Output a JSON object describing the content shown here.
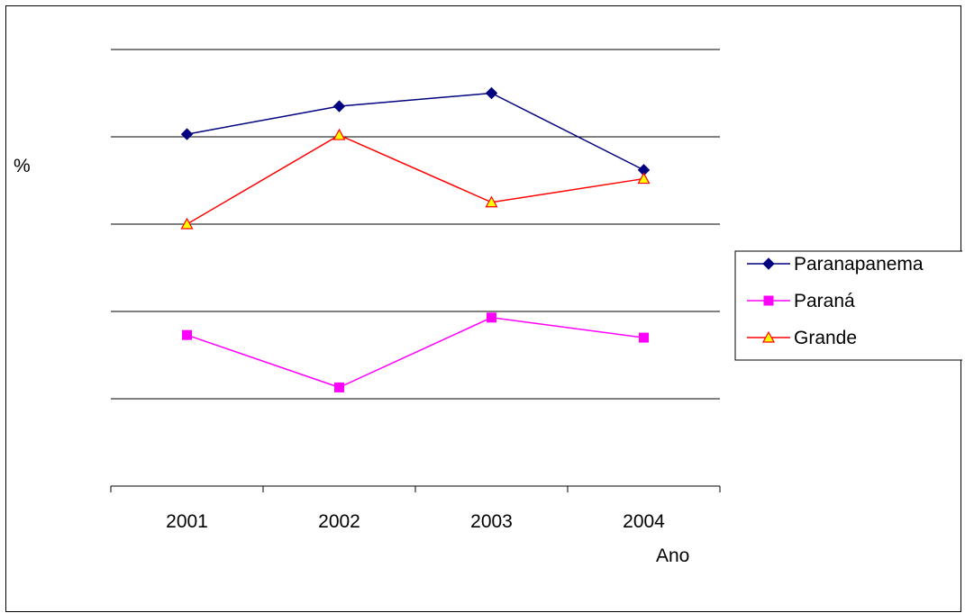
{
  "chart_data": {
    "type": "line",
    "categories": [
      "2001",
      "2002",
      "2003",
      "2004"
    ],
    "xlabel": "Ano",
    "ylabel": "%",
    "ylim": [
      0,
      5
    ],
    "grid": true,
    "legend_position": "right",
    "series": [
      {
        "name": "Paranapanema",
        "values": [
          4.03,
          4.35,
          4.5,
          3.62
        ],
        "color": "#000080",
        "marker": "diamond"
      },
      {
        "name": "Paraná",
        "values": [
          1.73,
          1.13,
          1.93,
          1.7
        ],
        "color": "#ff00ff",
        "marker": "square"
      },
      {
        "name": "Grande",
        "values": [
          3.0,
          4.02,
          3.25,
          3.52
        ],
        "color": "#ff0000",
        "marker": "triangle"
      }
    ]
  }
}
